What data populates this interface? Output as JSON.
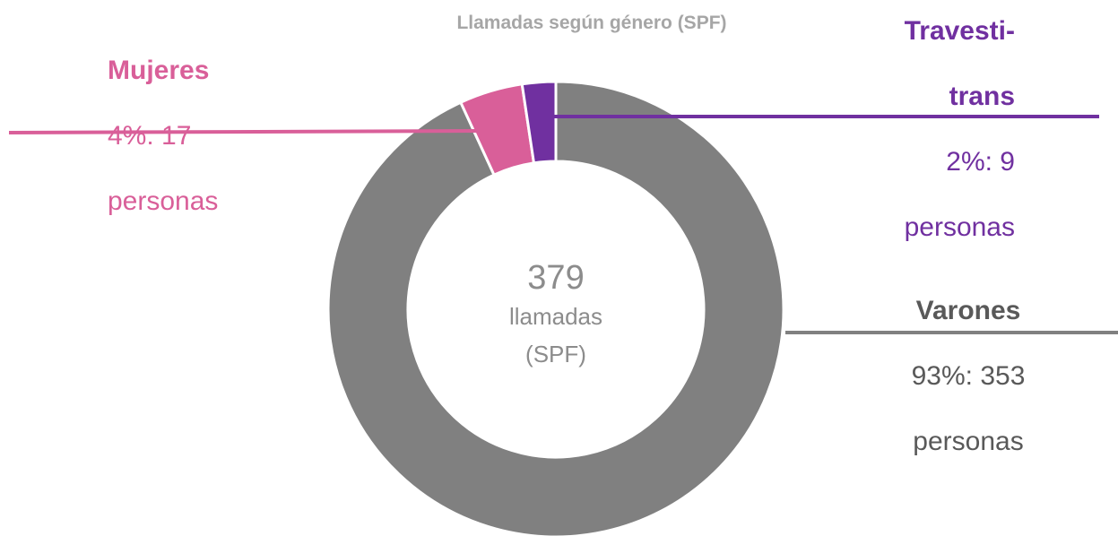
{
  "chart_data": {
    "type": "donut",
    "title": "Llamadas según género (SPF)",
    "categories": [
      "Varones",
      "Mujeres",
      "Travesti-trans"
    ],
    "values": [
      353,
      17,
      9
    ],
    "value_labels": [
      "93%: 353 personas",
      "4%: 17 personas",
      "2%: 9 personas"
    ],
    "colors": [
      "#808080",
      "#d95f99",
      "#7030a0"
    ],
    "center_value": 379,
    "center_label": "llamadas (SPF)"
  }
}
